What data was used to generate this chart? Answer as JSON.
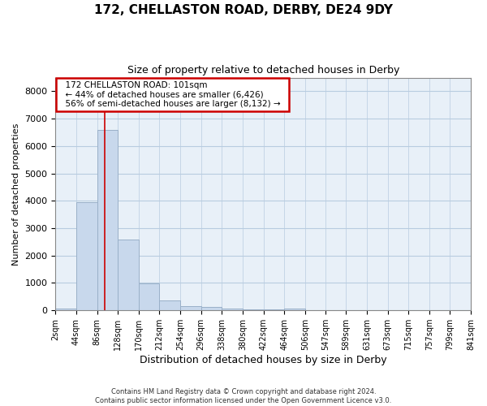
{
  "title1": "172, CHELLASTON ROAD, DERBY, DE24 9DY",
  "title2": "Size of property relative to detached houses in Derby",
  "xlabel": "Distribution of detached houses by size in Derby",
  "ylabel": "Number of detached properties",
  "annotation_title": "172 CHELLASTON ROAD: 101sqm",
  "annotation_line1": "← 44% of detached houses are smaller (6,426)",
  "annotation_line2": "56% of semi-detached houses are larger (8,132) →",
  "footer1": "Contains HM Land Registry data © Crown copyright and database right 2024.",
  "footer2": "Contains public sector information licensed under the Open Government Licence v3.0.",
  "bar_color": "#c8d8ec",
  "bar_edge_color": "#9ab0c8",
  "grid_color": "#b8cce0",
  "vline_color": "#cc0000",
  "annotation_box_color": "#cc0000",
  "background_color": "#ffffff",
  "plot_bg_color": "#e8f0f8",
  "bins": [
    2,
    44,
    86,
    128,
    170,
    212,
    254,
    296,
    338,
    380,
    422,
    464,
    506,
    547,
    589,
    631,
    673,
    715,
    757,
    799,
    841
  ],
  "counts": [
    60,
    3950,
    6600,
    2600,
    980,
    360,
    150,
    115,
    60,
    40,
    50,
    70,
    5,
    5,
    3,
    3,
    2,
    2,
    2,
    2
  ],
  "vline_x": 101,
  "ylim": [
    0,
    8500
  ],
  "yticks": [
    0,
    1000,
    2000,
    3000,
    4000,
    5000,
    6000,
    7000,
    8000
  ]
}
